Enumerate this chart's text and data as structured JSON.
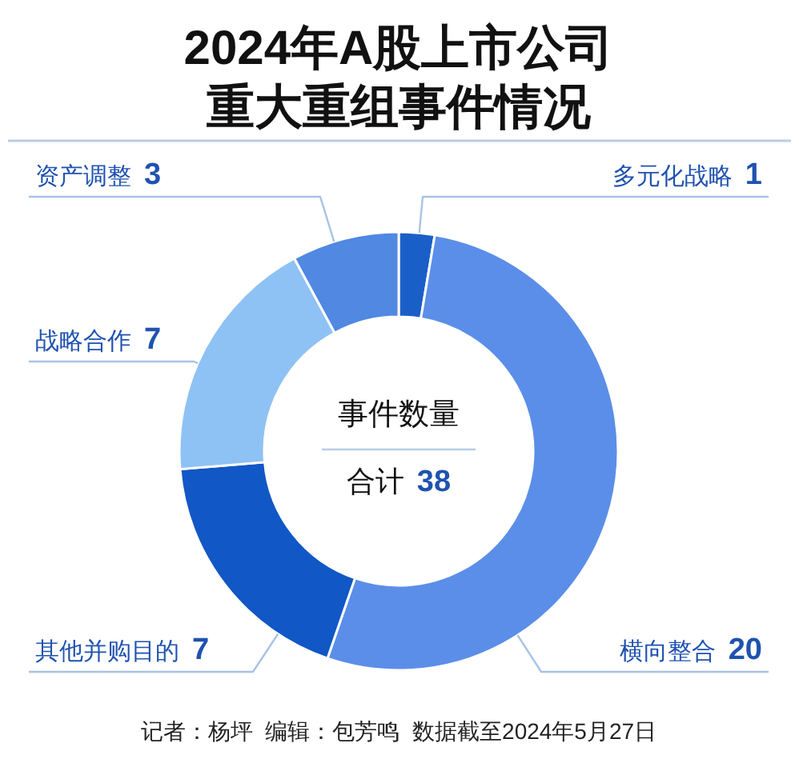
{
  "chart_data": {
    "type": "donut",
    "title": "2024年A股上市公司重大重组事件情况",
    "categories": [
      "多元化战略",
      "横向整合",
      "其他并购目的",
      "战略合作",
      "资产调整"
    ],
    "values": [
      1,
      20,
      7,
      7,
      3
    ],
    "colors": [
      "#1a5fc8",
      "#5b8ee8",
      "#1157c6",
      "#8fc2f4",
      "#5088e2"
    ],
    "data_labels": true,
    "annotations": [
      "事件数量",
      "合计 38",
      "记者：杨坪  编辑：包芳鸣  数据截至2024年5月27日"
    ]
  }
}
